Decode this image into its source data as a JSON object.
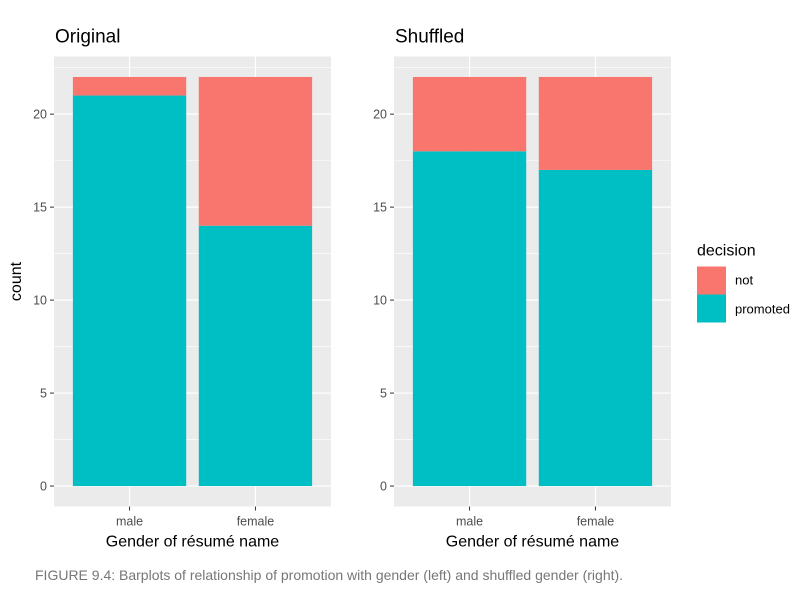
{
  "chart_data": [
    {
      "type": "bar",
      "stacked": true,
      "title": "Original",
      "xlabel": "Gender of résumé name",
      "ylabel": "count",
      "categories": [
        "male",
        "female"
      ],
      "series": [
        {
          "name": "promoted",
          "values": [
            21,
            14
          ]
        },
        {
          "name": "not",
          "values": [
            1,
            8
          ]
        }
      ],
      "yticks": [
        0,
        5,
        10,
        15,
        20
      ],
      "ylim": [
        -1.1,
        23.1
      ],
      "grid": true
    },
    {
      "type": "bar",
      "stacked": true,
      "title": "Shuffled",
      "xlabel": "Gender of résumé name",
      "ylabel": "",
      "categories": [
        "male",
        "female"
      ],
      "series": [
        {
          "name": "promoted",
          "values": [
            18,
            17
          ]
        },
        {
          "name": "not",
          "values": [
            4,
            5
          ]
        }
      ],
      "yticks": [
        0,
        5,
        10,
        15,
        20
      ],
      "ylim": [
        -1.1,
        23.1
      ],
      "grid": true
    }
  ],
  "legend": {
    "title": "decision",
    "position": "right",
    "items": [
      {
        "label": "not",
        "color": "#F8766D"
      },
      {
        "label": "promoted",
        "color": "#00BFC4"
      }
    ]
  },
  "colors": {
    "not": "#F8766D",
    "promoted": "#00BFC4",
    "panel_bg": "#EBEBEB",
    "grid": "#FFFFFF"
  },
  "caption": "FIGURE 9.4: Barplots of relationship of promotion with gender (left) and shuffled gender (right)."
}
